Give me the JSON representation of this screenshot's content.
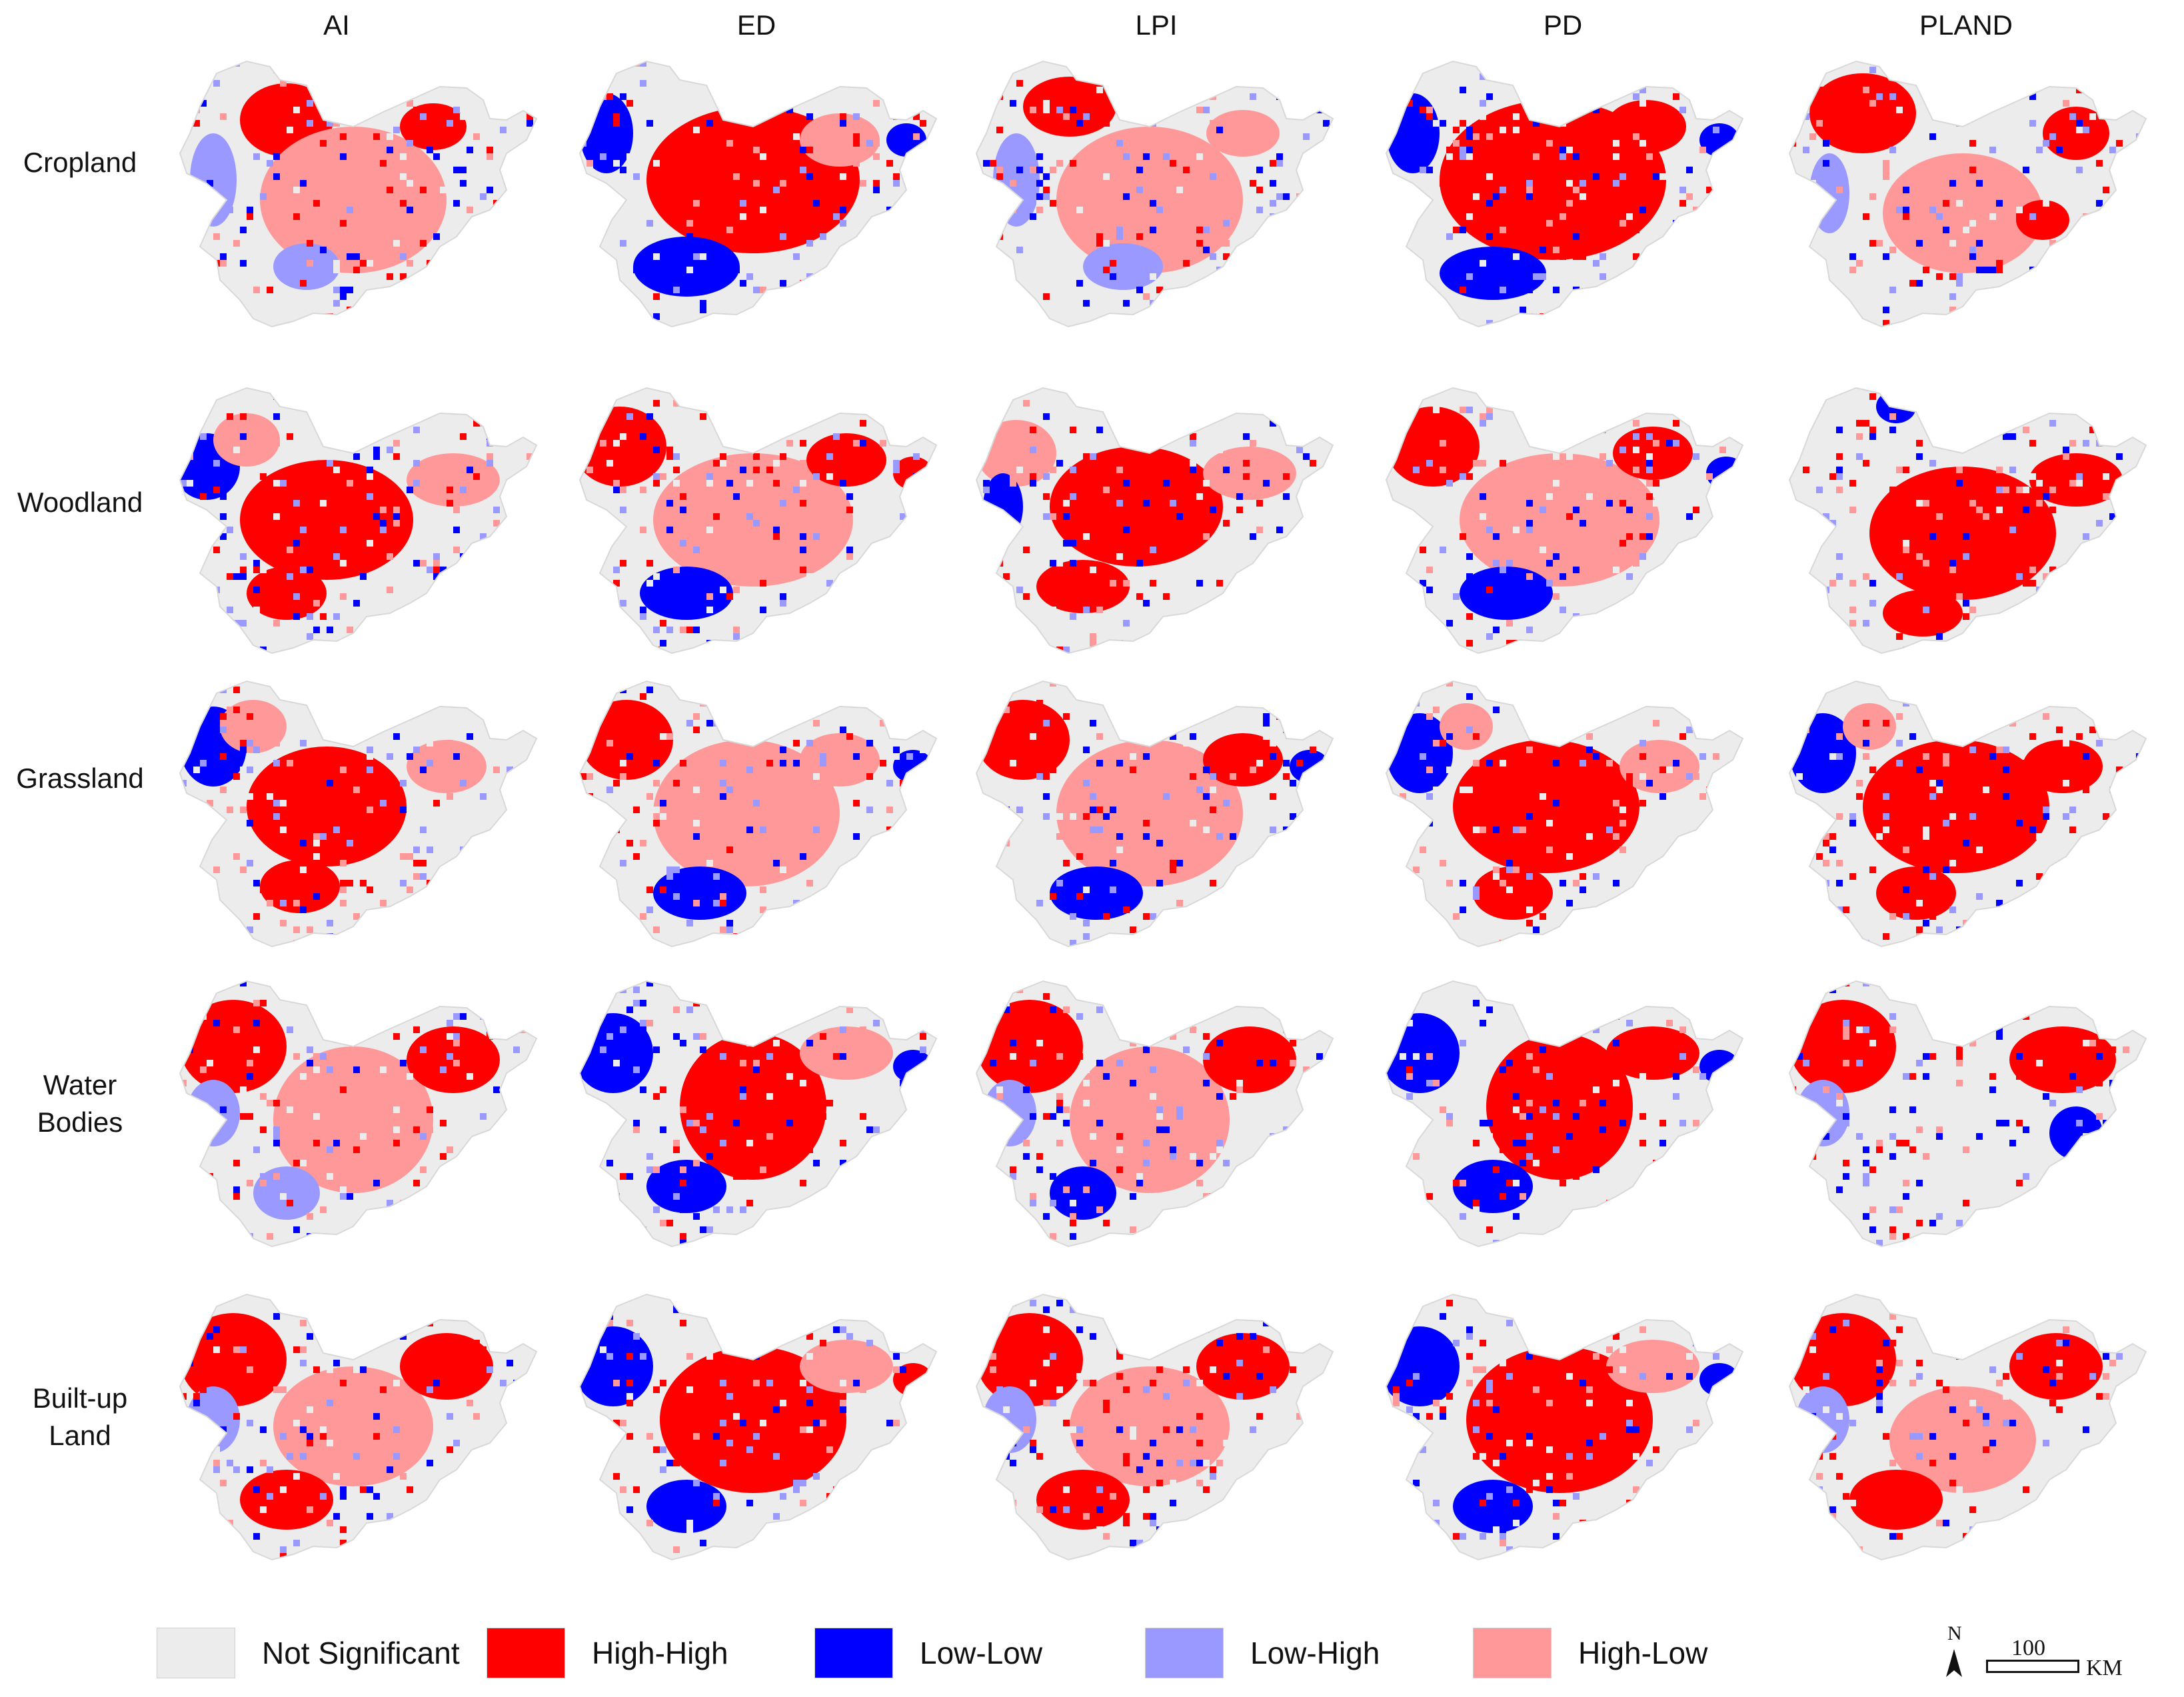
{
  "columns": [
    "AI",
    "ED",
    "LPI",
    "PD",
    "PLAND"
  ],
  "rows": [
    {
      "line1": "Cropland",
      "line2": ""
    },
    {
      "line1": "Woodland",
      "line2": ""
    },
    {
      "line1": "Grassland",
      "line2": ""
    },
    {
      "line1": "Water",
      "line2": "Bodies"
    },
    {
      "line1": "Built-up",
      "line2": "Land"
    }
  ],
  "legend": [
    {
      "label": "Not Significant",
      "color": "#ececec"
    },
    {
      "label": "High-High",
      "color": "#ff0000"
    },
    {
      "label": "Low-Low",
      "color": "#0000ff"
    },
    {
      "label": "Low-High",
      "color": "#9999ff"
    },
    {
      "label": "High-Low",
      "color": "#ff9999"
    }
  ],
  "north_arrow": {
    "label": "N"
  },
  "scale_bar": {
    "value": "100",
    "unit": "KM"
  },
  "colors": {
    "not_significant": "#ececec",
    "high_high": "#ff0000",
    "low_low": "#0000ff",
    "low_high": "#9999ff",
    "high_low": "#ff9999"
  }
}
